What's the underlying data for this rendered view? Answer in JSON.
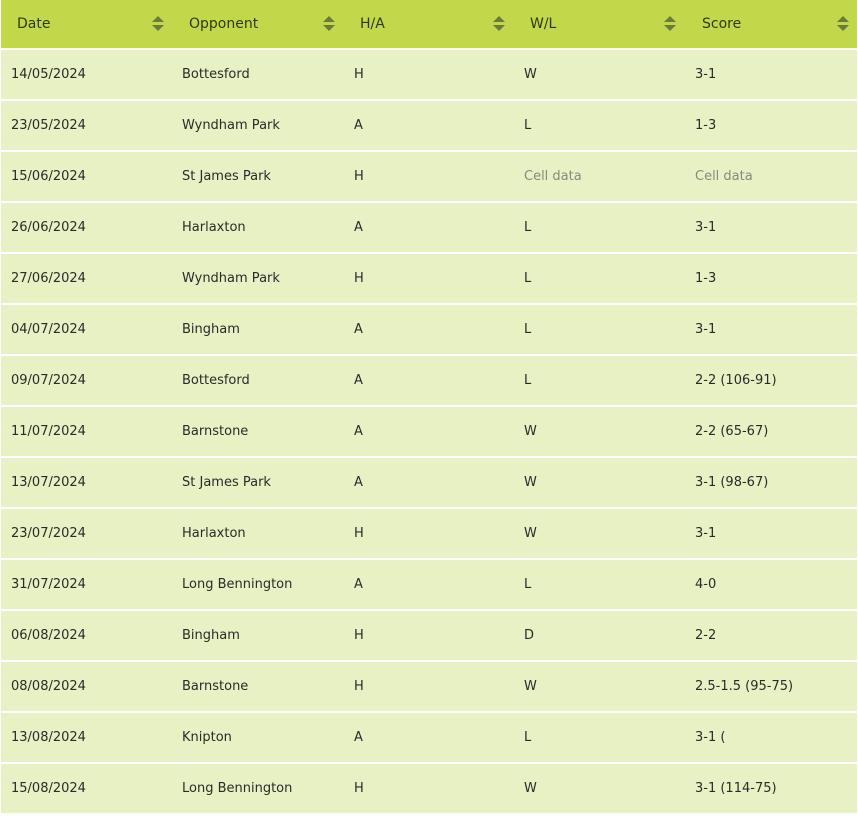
{
  "table": {
    "columns": [
      "Date",
      "Opponent",
      "H/A",
      "W/L",
      "Score"
    ],
    "rows": [
      [
        "14/05/2024",
        "Bottesford",
        "H",
        "W",
        "3-1"
      ],
      [
        "23/05/2024",
        "Wyndham Park",
        "A",
        "L",
        "1-3"
      ],
      [
        "15/06/2024",
        "St James Park",
        "H",
        "Cell data",
        "Cell data"
      ],
      [
        "26/06/2024",
        "Harlaxton",
        "A",
        "L",
        "3-1"
      ],
      [
        "27/06/2024",
        "Wyndham Park",
        "H",
        "L",
        "1-3"
      ],
      [
        "04/07/2024",
        "Bingham",
        "A",
        "L",
        "3-1"
      ],
      [
        "09/07/2024",
        "Bottesford",
        "A",
        "L",
        "2-2 (106-91)"
      ],
      [
        "11/07/2024",
        "Barnstone",
        "A",
        "W",
        "2-2 (65-67)"
      ],
      [
        "13/07/2024",
        "St James Park",
        "A",
        "W",
        "3-1 (98-67)"
      ],
      [
        "23/07/2024",
        "Harlaxton",
        "H",
        "W",
        "3-1"
      ],
      [
        "31/07/2024",
        "Long Bennington",
        "A",
        "L",
        "4-0"
      ],
      [
        "06/08/2024",
        "Bingham",
        "H",
        "D",
        "2-2"
      ],
      [
        "08/08/2024",
        "Barnstone",
        "H",
        "W",
        "2.5-1.5 (95-75)"
      ],
      [
        "13/08/2024",
        "Knipton",
        "A",
        "L",
        "3-1 ("
      ],
      [
        "15/08/2024",
        "Long Bennington",
        "H",
        "W",
        "3-1 (114-75)"
      ]
    ],
    "placeholder_text": "Cell data",
    "sort_icon": "sort-arrows-icon",
    "colors": {
      "header_bg": "#c2d84a",
      "row_bg": "#e8f1c4",
      "row_gap": "#ffffff",
      "placeholder_text": "#868a7c"
    }
  }
}
